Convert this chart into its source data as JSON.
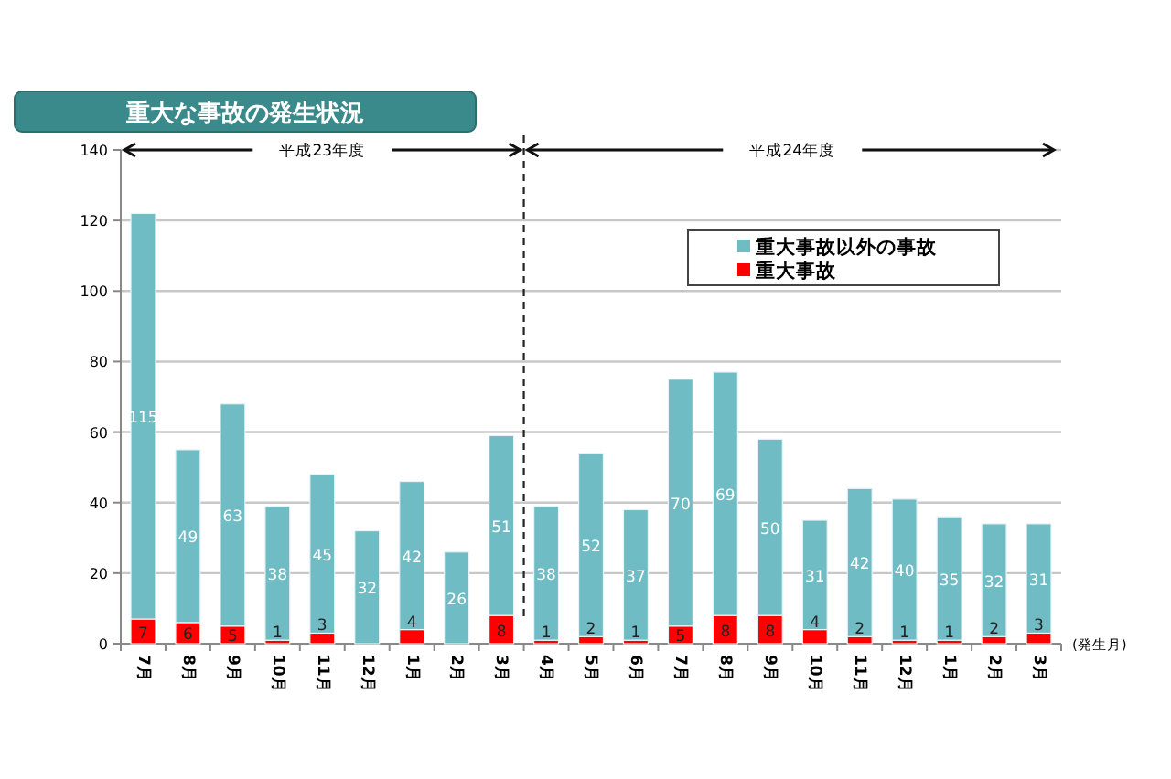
{
  "chart_data": {
    "type": "bar",
    "title": "重大な事故の発生状況",
    "stacked": true,
    "categories": [
      "7月",
      "8月",
      "9月",
      "10月",
      "11月",
      "12月",
      "1月",
      "2月",
      "3月",
      "4月",
      "5月",
      "6月",
      "7月",
      "8月",
      "9月",
      "10月",
      "11月",
      "12月",
      "1月",
      "2月",
      "3月"
    ],
    "series": [
      {
        "name": "重大事故",
        "color": "#ff0000",
        "values": [
          7,
          6,
          5,
          1,
          3,
          null,
          4,
          null,
          8,
          1,
          2,
          1,
          5,
          8,
          8,
          4,
          2,
          1,
          1,
          2,
          3
        ]
      },
      {
        "name": "重大事故以外の事故",
        "color": "#70bcc4",
        "values": [
          115,
          49,
          63,
          38,
          45,
          32,
          42,
          26,
          51,
          38,
          52,
          37,
          70,
          69,
          50,
          31,
          42,
          40,
          35,
          32,
          31
        ]
      }
    ],
    "ylim": [
      0,
      140
    ],
    "yticks": [
      0,
      20,
      40,
      60,
      80,
      100,
      120,
      140
    ],
    "grid": "y",
    "legend": "top right",
    "data_labels": true,
    "annotations": [
      "平成23年度",
      "平成24年度",
      "(発生月)"
    ]
  }
}
